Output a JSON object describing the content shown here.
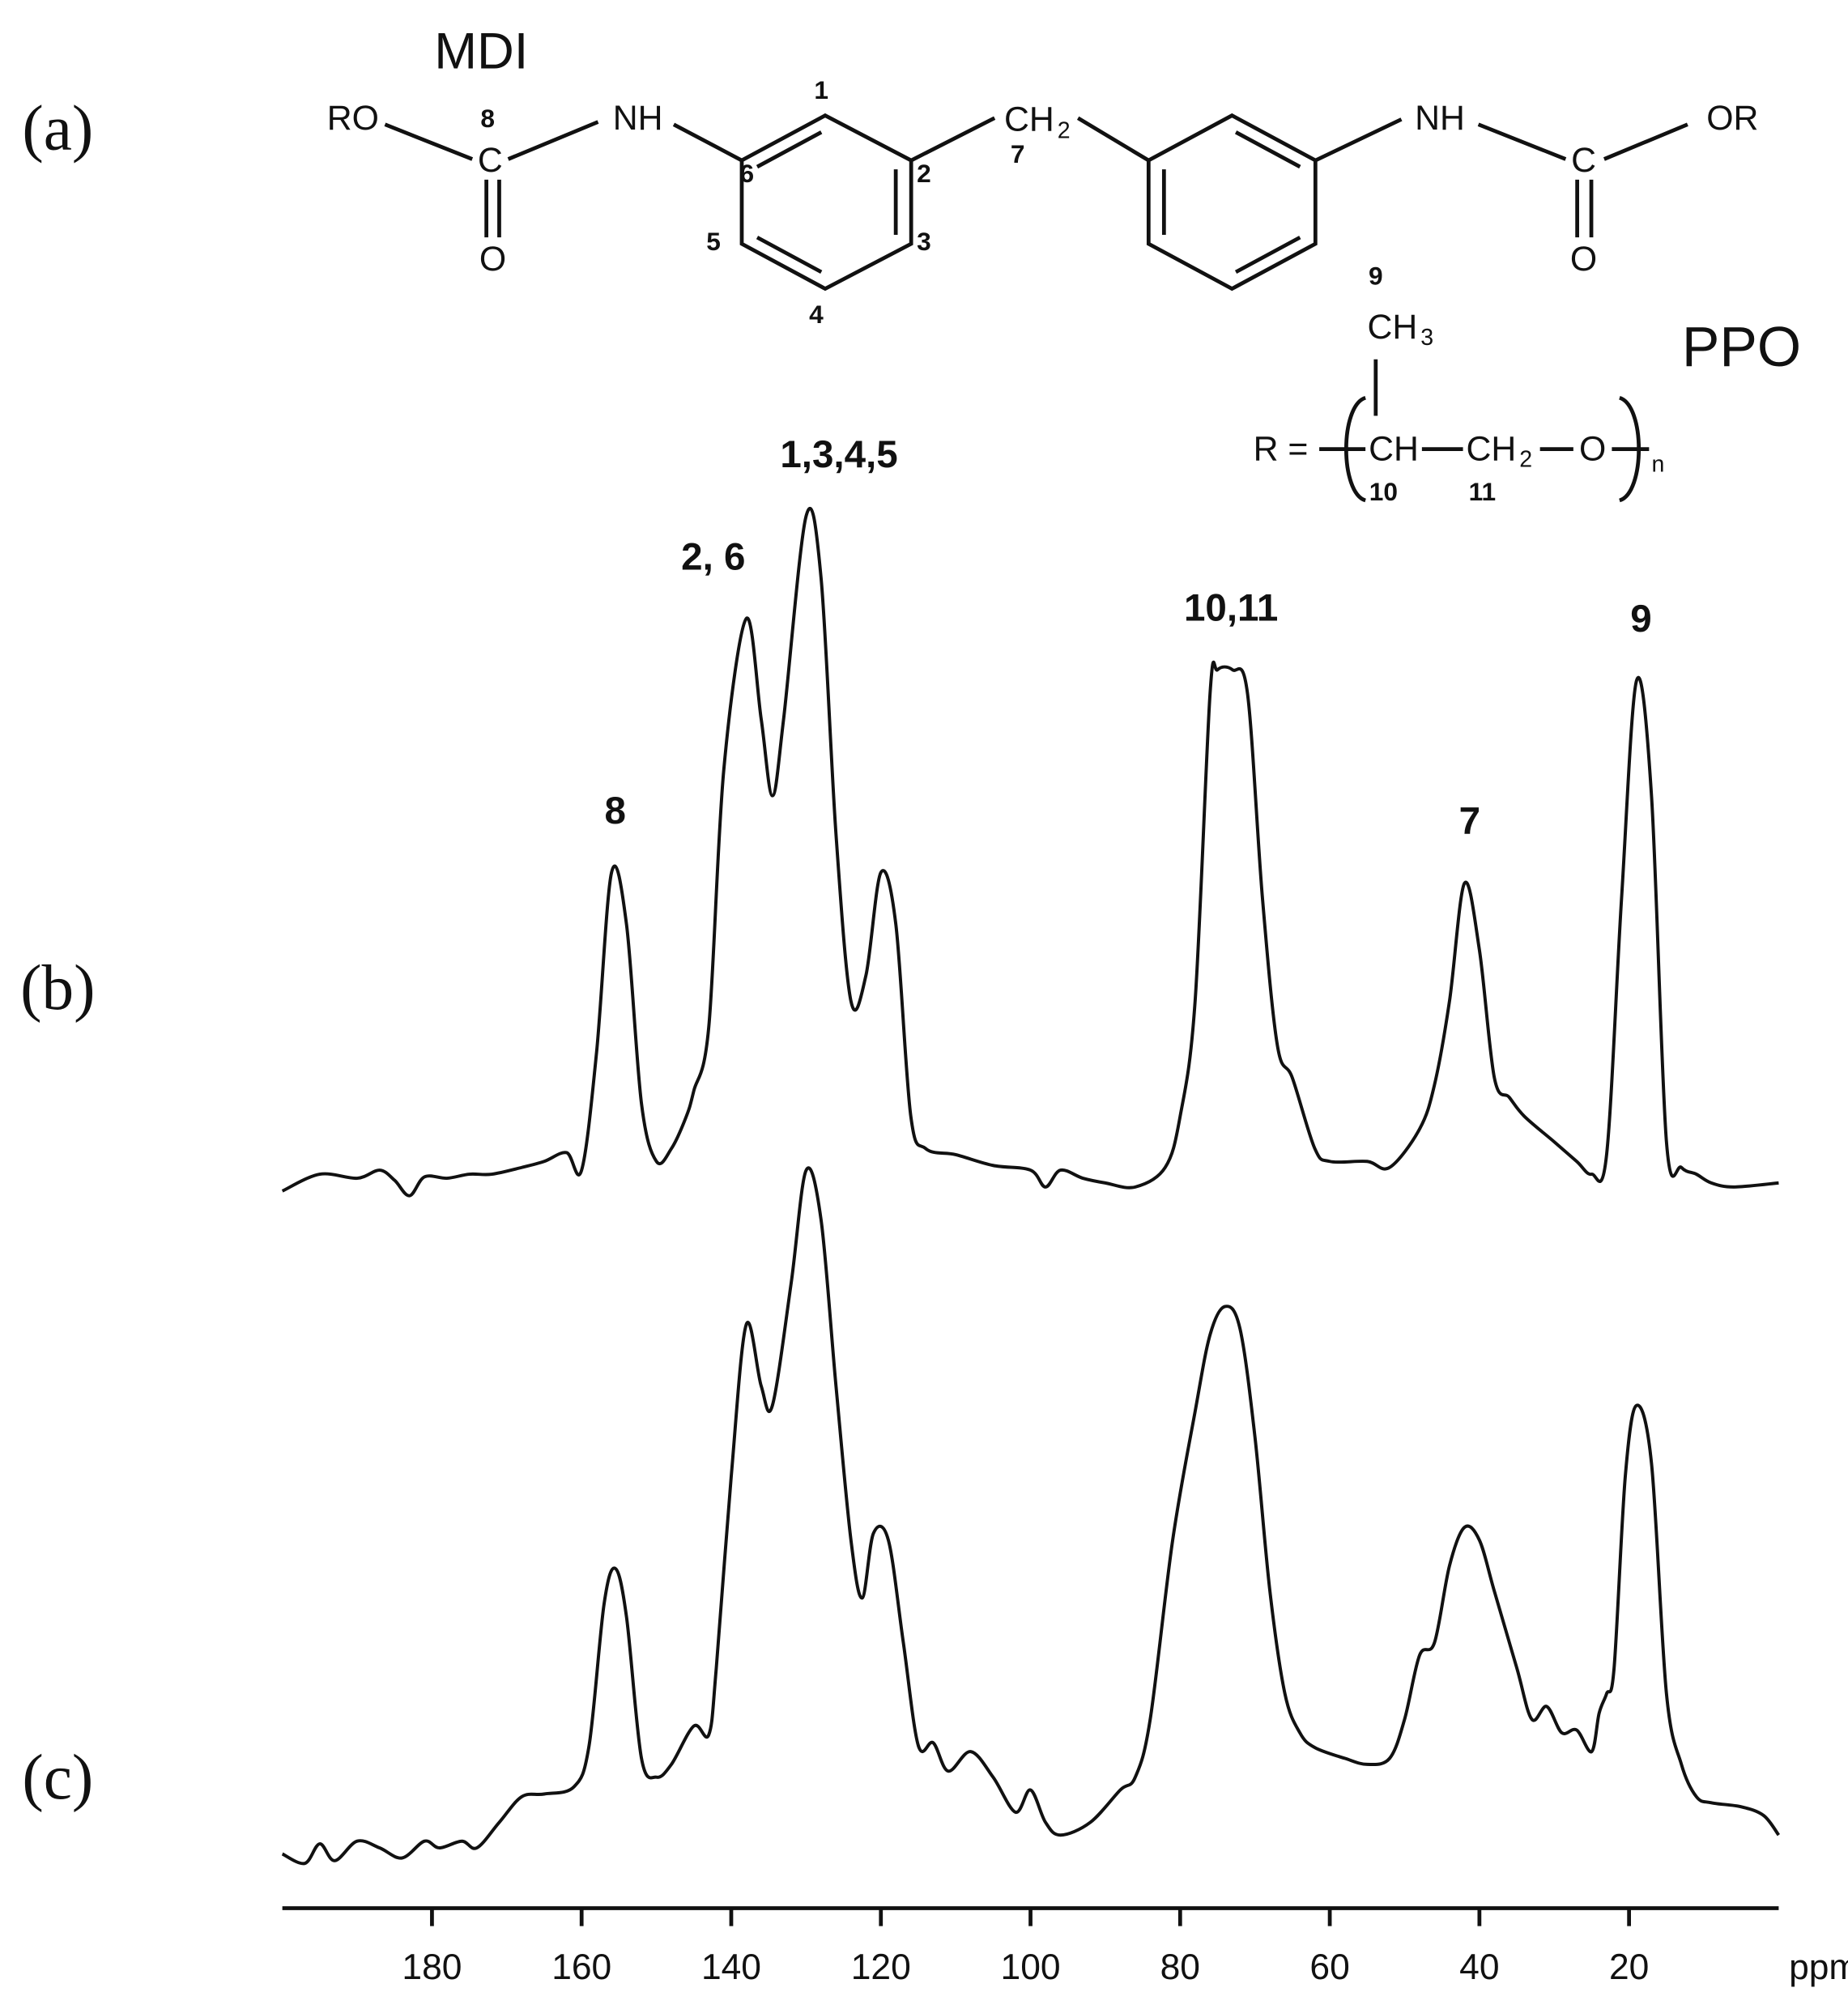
{
  "structure": {
    "panel_label": "(a)",
    "title": "MDI",
    "polymer": "PPO",
    "labels": [
      "RO",
      "NH",
      "C",
      "O",
      "CH",
      "2",
      "NH",
      "OR",
      "C",
      "O",
      "CH",
      "3",
      "R =",
      "CH",
      "CH",
      "2",
      "O",
      "n"
    ],
    "mdi_numbers": [
      "8",
      "1",
      "6",
      "2",
      "5",
      "3",
      "4",
      "7"
    ],
    "mdi_color": "#ef3468",
    "ppo_numbers": [
      "9",
      "10",
      "11"
    ],
    "ppo_color": "#1a87c9"
  },
  "chart_data": {
    "type": "line",
    "x_label": "ppm",
    "xlim": [
      200,
      0
    ],
    "xticks": [
      180,
      160,
      140,
      120,
      100,
      80,
      60,
      40,
      20
    ],
    "ylim": [
      -5,
      105
    ],
    "series": [
      {
        "name": "(b)",
        "color": "#111111",
        "x": [
          200,
          195,
          190,
          187,
          185,
          183,
          181,
          178,
          175,
          172,
          168,
          165,
          162,
          160,
          158,
          156,
          154,
          152,
          150,
          148,
          146,
          145,
          143,
          141,
          138,
          136,
          134.5,
          133,
          130,
          128,
          126,
          124,
          122,
          120,
          118,
          116,
          114,
          110,
          105,
          100,
          98,
          96,
          93,
          90,
          86,
          82,
          80,
          78,
          76,
          75,
          73,
          71,
          69,
          67,
          65,
          62,
          60,
          55,
          52,
          48,
          46,
          44,
          42,
          40,
          38,
          36,
          34,
          30,
          27,
          25,
          23,
          21,
          19,
          17,
          15,
          13,
          11,
          9,
          6,
          0
        ],
        "values": [
          -0.6,
          1.9,
          1.3,
          2.5,
          1.0,
          -1.3,
          1.5,
          1.3,
          1.9,
          1.9,
          2.9,
          3.8,
          5.1,
          2.5,
          20,
          46.7,
          39.0,
          12.4,
          3.8,
          5.7,
          10.5,
          14.3,
          23.8,
          61.9,
          84.4,
          69.5,
          58.1,
          69.5,
          99.6,
          90.5,
          52.4,
          27.6,
          31.4,
          46.7,
          39.0,
          10.5,
          5.7,
          4.8,
          3.2,
          2.5,
          0,
          2.5,
          1.3,
          0.6,
          0,
          2.9,
          10.5,
          27.6,
          73.3,
          76.8,
          76.8,
          73.3,
          42.9,
          21.0,
          16.2,
          5.7,
          3.8,
          3.8,
          2.9,
          8.6,
          15.2,
          27.6,
          45.1,
          35.2,
          16.2,
          13.3,
          10.5,
          6.7,
          3.8,
          1.9,
          4.8,
          42.9,
          75.2,
          58.1,
          6.7,
          2.9,
          1.9,
          0.6,
          0,
          0.6
        ]
      },
      {
        "name": "(c)",
        "color": "#111111",
        "x": [
          200,
          197,
          195,
          193,
          190,
          187,
          184,
          181,
          179,
          176,
          174,
          171,
          168,
          165,
          161,
          159,
          157,
          155.5,
          154,
          152,
          150,
          148,
          145,
          143,
          142,
          140,
          138,
          136,
          134.5,
          132,
          130,
          128,
          126,
          124,
          122.5,
          121,
          119,
          117,
          115,
          113,
          111,
          108,
          105,
          102,
          100,
          98,
          96,
          92,
          88,
          86,
          84,
          81,
          78,
          76,
          74,
          72,
          70,
          68,
          66,
          64,
          62,
          58,
          55,
          52,
          50,
          48,
          46,
          44,
          42,
          40,
          38,
          35,
          33,
          31,
          29,
          27,
          25,
          24,
          23,
          22,
          20.5,
          19,
          17,
          15,
          13,
          11,
          9,
          5,
          2,
          0
        ],
        "values": [
          1.0,
          -0.4,
          2.5,
          0,
          2.9,
          1.9,
          0.4,
          2.9,
          1.9,
          2.9,
          1.9,
          5.7,
          9.5,
          9.9,
          11.0,
          17.1,
          38.1,
          43.4,
          36.2,
          15.2,
          12.4,
          14.3,
          20,
          18.7,
          28.6,
          57.1,
          79.6,
          70.5,
          67.6,
          85.7,
          102.5,
          95.2,
          70.5,
          47.6,
          39.0,
          48.6,
          47.6,
          32.4,
          17.1,
          17.5,
          13.3,
          16.2,
          12.4,
          7.2,
          10.5,
          5.7,
          3.8,
          5.7,
          10.5,
          12.4,
          21.0,
          47.6,
          66.7,
          78.1,
          82.3,
          79.0,
          62.9,
          40,
          24.8,
          19.0,
          16.8,
          15.2,
          14.3,
          15.2,
          21.0,
          30.5,
          32.4,
          43.8,
          49.5,
          47.6,
          40,
          28.6,
          21.0,
          22.9,
          19.0,
          19.4,
          16.2,
          21.9,
          24.8,
          28.6,
          57.1,
          67.6,
          59.0,
          24.8,
          14.3,
          9.5,
          8.6,
          8.0,
          6.7,
          3.8
        ]
      }
    ],
    "annotations": [
      {
        "text": "8",
        "x": 155.5,
        "color": "#ef3468"
      },
      {
        "text": "2, 6",
        "x": 142.4,
        "color": "#ef3468"
      },
      {
        "text": "1,3,4,5",
        "x": 125.6,
        "color": "#ef3468"
      },
      {
        "text": "10,11",
        "x": 73.2,
        "color": "#1a87c9"
      },
      {
        "text": "7",
        "x": 41.3,
        "color": "#ef3468"
      },
      {
        "text": "9",
        "x": 18.4,
        "color": "#1a87c9"
      }
    ]
  }
}
